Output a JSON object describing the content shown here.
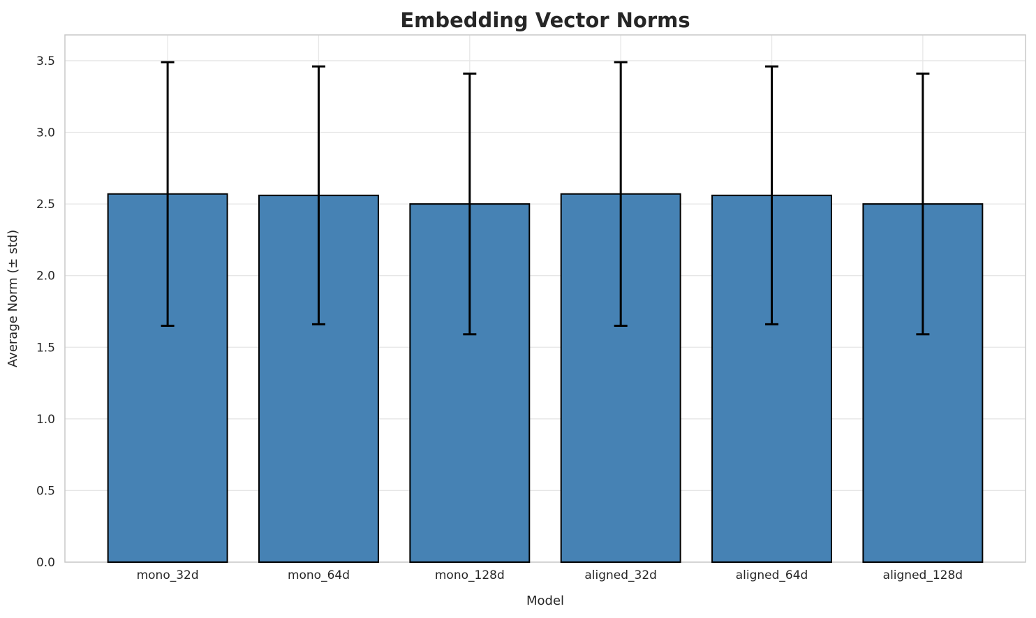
{
  "chart_data": {
    "type": "bar",
    "title": "Embedding Vector Norms",
    "xlabel": "Model",
    "ylabel": "Average Norm (± std)",
    "categories": [
      "mono_32d",
      "mono_64d",
      "mono_128d",
      "aligned_32d",
      "aligned_64d",
      "aligned_128d"
    ],
    "values": [
      2.57,
      2.56,
      2.5,
      2.57,
      2.56,
      2.5
    ],
    "errors": [
      0.92,
      0.9,
      0.91,
      0.92,
      0.9,
      0.91
    ],
    "yticks": [
      "0.0",
      "0.5",
      "1.0",
      "1.5",
      "2.0",
      "2.5",
      "3.0",
      "3.5"
    ],
    "ylim": [
      0,
      3.68
    ],
    "grid": "both",
    "legend_position": "none",
    "colors": {
      "bar_fill": "#4682b4",
      "bar_edge": "#000000",
      "error_bar": "#000000",
      "grid_line": "#e6e6e6",
      "spine": "#c9c9c9",
      "text": "#262626",
      "background": "#ffffff"
    }
  }
}
